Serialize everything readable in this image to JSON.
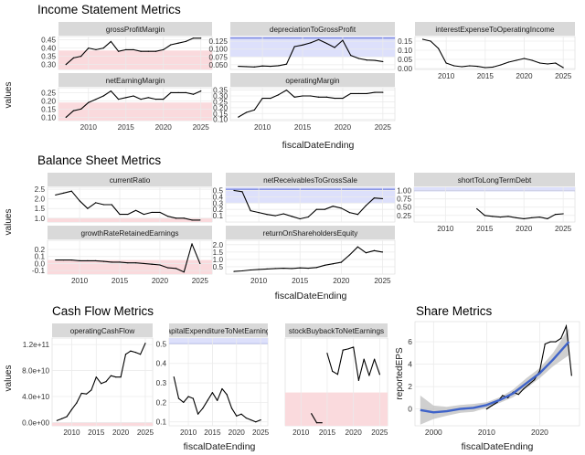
{
  "sections": {
    "income": "Income Statement Metrics",
    "balance": "Balance Sheet Metrics",
    "cashflow": "Cash Flow Metrics",
    "share": "Share Metrics"
  },
  "colors": {
    "panel_bg": "#ffffff",
    "grid": "#ebebeb",
    "strip_bg": "#d9d9d9",
    "line": "#000000",
    "red_band": "#fadadd",
    "blue_band": "#dde0fb",
    "blue_line": "#5b6bd6",
    "red_line": "#e8a0a8",
    "smooth_line": "#3f63c9",
    "smooth_band": "#bfbfbf"
  },
  "chart_data": [
    {
      "id": "income-statement",
      "type": "line",
      "title": "Income Statement Metrics",
      "xlabel": "fiscalDateEnding",
      "ylabel": "values",
      "xticks": [
        2010,
        2015,
        2020,
        2025
      ],
      "panels": [
        {
          "strip": "grossProfitMargin",
          "xlim": [
            2006,
            2026.5
          ],
          "ylim": [
            0.27,
            0.47
          ],
          "yticks": [
            0.3,
            0.35,
            0.4,
            0.45
          ],
          "yticklabels": [
            "0.30",
            "0.35",
            "0.40",
            "0.45"
          ],
          "band": {
            "type": "red",
            "range": [
              0.27,
              0.385
            ]
          },
          "x": [
            2007,
            2008,
            2009,
            2010,
            2011,
            2012,
            2013,
            2014,
            2015,
            2016,
            2017,
            2018,
            2019,
            2020,
            2021,
            2022,
            2023,
            2024,
            2025
          ],
          "y": [
            0.3,
            0.34,
            0.35,
            0.4,
            0.39,
            0.4,
            0.44,
            0.38,
            0.39,
            0.39,
            0.38,
            0.38,
            0.38,
            0.39,
            0.42,
            0.43,
            0.44,
            0.46,
            0.46
          ]
        },
        {
          "strip": "depreciationToGrossProfit",
          "xlim": [
            2006,
            2026.5
          ],
          "ylim": [
            0.035,
            0.14
          ],
          "yticks": [
            0.05,
            0.075,
            0.1,
            0.125
          ],
          "yticklabels": [
            "0.050",
            "0.075",
            "0.100",
            "0.125"
          ],
          "band": {
            "type": "blue",
            "range": [
              0.075,
              0.14
            ],
            "line": 0.135
          },
          "x": [
            2007,
            2008,
            2009,
            2010,
            2011,
            2012,
            2013,
            2014,
            2015,
            2016,
            2017,
            2018,
            2019,
            2020,
            2021,
            2022,
            2023,
            2024,
            2025
          ],
          "y": [
            0.045,
            0.044,
            0.043,
            0.046,
            0.045,
            0.047,
            0.052,
            0.108,
            0.113,
            0.12,
            0.13,
            0.118,
            0.105,
            0.128,
            0.08,
            0.07,
            0.065,
            0.064,
            0.06
          ]
        },
        {
          "strip": "interestExpenseToOperatingIncome",
          "xlim": [
            2006,
            2026.5
          ],
          "ylim": [
            -0.005,
            0.175
          ],
          "yticks": [
            0.0,
            0.05,
            0.1,
            0.15
          ],
          "yticklabels": [
            "0.00",
            "0.05",
            "0.10",
            "0.15"
          ],
          "band": null,
          "x": [
            2007,
            2008,
            2009,
            2010,
            2011,
            2012,
            2013,
            2014,
            2015,
            2016,
            2017,
            2018,
            2019,
            2020,
            2021,
            2022,
            2023,
            2024,
            2025
          ],
          "y": [
            0.16,
            0.15,
            0.11,
            0.03,
            0.015,
            0.01,
            0.015,
            0.012,
            0.005,
            0.008,
            0.02,
            0.035,
            0.045,
            0.055,
            0.045,
            0.03,
            0.025,
            0.03,
            0.005
          ]
        },
        {
          "strip": "netEarningMargin",
          "xlim": [
            2006,
            2026.5
          ],
          "ylim": [
            0.08,
            0.28
          ],
          "yticks": [
            0.1,
            0.15,
            0.2,
            0.25
          ],
          "yticklabels": [
            "0.10",
            "0.15",
            "0.20",
            "0.25"
          ],
          "band": {
            "type": "red",
            "range": [
              0.08,
              0.19
            ]
          },
          "x": [
            2007,
            2008,
            2009,
            2010,
            2011,
            2012,
            2013,
            2014,
            2015,
            2016,
            2017,
            2018,
            2019,
            2020,
            2021,
            2022,
            2023,
            2024,
            2025
          ],
          "y": [
            0.1,
            0.14,
            0.15,
            0.19,
            0.21,
            0.23,
            0.26,
            0.21,
            0.22,
            0.23,
            0.21,
            0.22,
            0.21,
            0.21,
            0.25,
            0.25,
            0.25,
            0.24,
            0.26
          ]
        },
        {
          "strip": "operatingMargin",
          "xlim": [
            2006,
            2026.5
          ],
          "ylim": [
            0.09,
            0.37
          ],
          "yticks": [
            0.1,
            0.15,
            0.2,
            0.25,
            0.3,
            0.35
          ],
          "yticklabels": [
            "0.10",
            "0.15",
            "0.20",
            "0.25",
            "0.30",
            "0.35"
          ],
          "band": null,
          "x": [
            2007,
            2008,
            2009,
            2010,
            2011,
            2012,
            2013,
            2014,
            2015,
            2016,
            2017,
            2018,
            2019,
            2020,
            2021,
            2022,
            2023,
            2024,
            2025
          ],
          "y": [
            0.12,
            0.16,
            0.18,
            0.28,
            0.28,
            0.31,
            0.35,
            0.29,
            0.3,
            0.3,
            0.29,
            0.29,
            0.28,
            0.28,
            0.32,
            0.32,
            0.32,
            0.33,
            0.33
          ]
        }
      ]
    },
    {
      "id": "balance-sheet",
      "type": "line",
      "title": "Balance Sheet Metrics",
      "xlabel": "fiscalDateEnding",
      "ylabel": "values",
      "xticks": [
        2010,
        2015,
        2020,
        2025
      ],
      "panels": [
        {
          "strip": "currentRatio",
          "xlim": [
            2006,
            2026.5
          ],
          "ylim": [
            0.8,
            2.6
          ],
          "yticks": [
            1.0,
            1.5,
            2.0,
            2.5
          ],
          "yticklabels": [
            "1.0",
            "1.5",
            "2.0",
            "2.5"
          ],
          "band": {
            "type": "red",
            "range": [
              0.8,
              1.0
            ]
          },
          "x": [
            2007,
            2008,
            2009,
            2010,
            2011,
            2012,
            2013,
            2014,
            2015,
            2016,
            2017,
            2018,
            2019,
            2020,
            2021,
            2022,
            2023,
            2024,
            2025
          ],
          "y": [
            2.2,
            2.3,
            2.4,
            1.9,
            1.5,
            1.8,
            1.7,
            1.7,
            1.2,
            1.2,
            1.4,
            1.2,
            1.3,
            1.3,
            1.1,
            1.0,
            1.0,
            0.9,
            0.9
          ]
        },
        {
          "strip": "netReceivablesToGrossSale",
          "xlim": [
            2006,
            2026.5
          ],
          "ylim": [
            0.0,
            0.55
          ],
          "yticks": [
            0.1,
            0.2,
            0.3,
            0.4,
            0.5
          ],
          "yticklabels": [
            "0.1",
            "0.2",
            "0.3",
            "0.4",
            "0.5"
          ],
          "band": {
            "type": "blue",
            "range": [
              0.3,
              0.55
            ],
            "line": 0.52
          },
          "x": [
            2007,
            2008,
            2009,
            2010,
            2011,
            2012,
            2013,
            2014,
            2015,
            2016,
            2017,
            2018,
            2019,
            2020,
            2021,
            2022,
            2023,
            2024,
            2025
          ],
          "y": [
            0.5,
            0.48,
            0.18,
            0.15,
            0.12,
            0.1,
            0.13,
            0.09,
            0.05,
            0.08,
            0.2,
            0.2,
            0.25,
            0.22,
            0.15,
            0.12,
            0.26,
            0.38,
            0.37
          ]
        },
        {
          "strip": "shortToLongTermDebt",
          "xlim": [
            2006,
            2026.5
          ],
          "ylim": [
            0.05,
            1.1
          ],
          "yticks": [
            0.25,
            0.5,
            0.75,
            1.0
          ],
          "yticklabels": [
            "0.25",
            "0.50",
            "0.75",
            "1.00"
          ],
          "band": {
            "type": "blue",
            "range": [
              1.0,
              1.1
            ],
            "line": 1.0
          },
          "x": [
            2014,
            2015,
            2016,
            2017,
            2018,
            2019,
            2020,
            2021,
            2022,
            2023,
            2024,
            2025
          ],
          "y": [
            0.45,
            0.25,
            0.22,
            0.2,
            0.22,
            0.18,
            0.15,
            0.18,
            0.2,
            0.15,
            0.28,
            0.3
          ]
        },
        {
          "strip": "growthRateRetainedEarnings",
          "xlim": [
            2006,
            2026.5
          ],
          "ylim": [
            -0.15,
            0.33
          ],
          "yticks": [
            -0.1,
            0.0,
            0.1,
            0.2
          ],
          "yticklabels": [
            "-0.1",
            "0.0",
            "0.1",
            "0.2"
          ],
          "band": {
            "type": "red",
            "range": [
              -0.15,
              0.05
            ]
          },
          "x": [
            2007,
            2008,
            2009,
            2010,
            2011,
            2012,
            2013,
            2014,
            2015,
            2016,
            2017,
            2018,
            2019,
            2020,
            2021,
            2022,
            2023,
            2024,
            2025
          ],
          "y": [
            0.05,
            0.05,
            0.05,
            0.04,
            0.04,
            0.04,
            0.03,
            0.02,
            0.02,
            0.01,
            0.01,
            0.0,
            -0.01,
            -0.02,
            -0.06,
            -0.07,
            -0.12,
            0.28,
            0.0
          ]
        },
        {
          "strip": "returnOnShareholdersEquity",
          "xlim": [
            2006,
            2026.5
          ],
          "ylim": [
            0.0,
            2.3
          ],
          "yticks": [
            0.5,
            1.0,
            1.5,
            2.0
          ],
          "yticklabels": [
            "0.5",
            "1.0",
            "1.5",
            "2.0"
          ],
          "band": null,
          "x": [
            2007,
            2008,
            2009,
            2010,
            2011,
            2012,
            2013,
            2014,
            2015,
            2016,
            2017,
            2018,
            2019,
            2020,
            2021,
            2022,
            2023,
            2024,
            2025
          ],
          "y": [
            0.18,
            0.22,
            0.28,
            0.32,
            0.35,
            0.38,
            0.4,
            0.38,
            0.42,
            0.4,
            0.45,
            0.6,
            0.7,
            0.8,
            1.3,
            1.85,
            1.45,
            1.6,
            1.5
          ]
        }
      ]
    },
    {
      "id": "cash-flow",
      "type": "line",
      "title": "Cash Flow Metrics",
      "xlabel": "fiscalDateEnding",
      "ylabel": "values",
      "panels": [
        {
          "strip": "operatingCashFlow",
          "xlim": [
            2006,
            2026.5
          ],
          "ylim": [
            -5000000000.0,
            130000000000.0
          ],
          "xticks": [
            2010,
            2015,
            2020,
            2025
          ],
          "yticks": [
            0,
            40000000000.0,
            80000000000.0,
            120000000000.0
          ],
          "yticklabels": [
            "0.0e+00",
            "4.0e+10",
            "8.0e+10",
            "1.2e+11"
          ],
          "band": {
            "type": "red",
            "range": [
              -5000000000.0,
              0
            ]
          },
          "x": [
            2007,
            2008,
            2009,
            2010,
            2011,
            2012,
            2013,
            2014,
            2015,
            2016,
            2017,
            2018,
            2019,
            2020,
            2021,
            2022,
            2023,
            2024,
            2025
          ],
          "y": [
            3000000000.0,
            6000000000.0,
            9000000000.0,
            20000000000.0,
            30000000000.0,
            45000000000.0,
            44000000000.0,
            50000000000.0,
            70000000000.0,
            60000000000.0,
            63000000000.0,
            72000000000.0,
            70000000000.0,
            70000000000.0,
            105000000000.0,
            110000000000.0,
            108000000000.0,
            105000000000.0,
            122000000000.0
          ]
        },
        {
          "strip": "capitalExpenditureToNetEarnings",
          "xlim": [
            2006,
            2026.5
          ],
          "ylim": [
            0.08,
            0.53
          ],
          "xticks": [
            2010,
            2015,
            2020,
            2025
          ],
          "yticks": [
            0.1,
            0.2,
            0.3,
            0.4,
            0.5
          ],
          "yticklabels": [
            "0.1",
            "0.2",
            "0.3",
            "0.4",
            "0.5"
          ],
          "band": {
            "type": "blue",
            "range": [
              0.5,
              0.53
            ],
            "line": 0.5
          },
          "x": [
            2007,
            2008,
            2009,
            2010,
            2011,
            2012,
            2013,
            2014,
            2015,
            2016,
            2017,
            2018,
            2019,
            2020,
            2021,
            2022,
            2023,
            2024,
            2025
          ],
          "y": [
            0.33,
            0.22,
            0.2,
            0.23,
            0.22,
            0.14,
            0.17,
            0.21,
            0.25,
            0.21,
            0.27,
            0.24,
            0.17,
            0.13,
            0.14,
            0.12,
            0.11,
            0.1,
            0.11
          ]
        },
        {
          "strip": "stockBuybackToNetEarnings",
          "xlim": [
            2007,
            2026.5
          ],
          "ylim": [
            -0.05,
            1.4
          ],
          "xticks": [
            2010,
            2015,
            2020,
            2025
          ],
          "yticks": [],
          "yticklabels": [],
          "band": {
            "type": "red",
            "range": [
              -0.05,
              0.5
            ]
          },
          "x": [
            2012,
            2013,
            2014,
            2015,
            2016,
            2017,
            2018,
            2019,
            2020,
            2021,
            2022,
            2023,
            2024,
            2025
          ],
          "y": [
            0.15,
            0.0,
            0.0,
            1.15,
            0.85,
            0.8,
            1.2,
            1.22,
            1.25,
            0.7,
            1.05,
            0.78,
            1.05,
            0.8
          ],
          "segments": [
            [
              0,
              2
            ],
            [
              3,
              13
            ]
          ]
        }
      ]
    },
    {
      "id": "share-metrics",
      "type": "scatter",
      "title": "Share Metrics",
      "xlabel": "fiscalDateEnding",
      "ylabel": "reportedEPS",
      "xlim": [
        1996.5,
        2027.5
      ],
      "ylim": [
        -1.5,
        7.8
      ],
      "xticks": [
        2000,
        2010,
        2020
      ],
      "yticks": [
        0,
        2,
        4,
        6
      ],
      "x": [
        2010,
        2011,
        2012,
        2013,
        2014,
        2015,
        2016,
        2017,
        2018,
        2019,
        2020,
        2021,
        2022,
        2023,
        2024,
        2025,
        2026
      ],
      "y": [
        0.0,
        0.3,
        0.6,
        1.2,
        1.0,
        1.5,
        1.3,
        1.8,
        2.2,
        2.6,
        3.4,
        5.8,
        6.0,
        6.0,
        6.3,
        7.4,
        3.0
      ],
      "smooth_x": [
        1997.5,
        2000,
        2002.5,
        2005,
        2007.5,
        2010,
        2012.5,
        2015,
        2017.5,
        2020,
        2022.5,
        2025.5
      ],
      "smooth_y": [
        -0.1,
        -0.3,
        -0.2,
        0.0,
        0.1,
        0.35,
        0.8,
        1.4,
        2.3,
        3.2,
        4.4,
        6.0
      ],
      "smooth_lo": [
        -1.4,
        -0.9,
        -0.6,
        -0.35,
        -0.25,
        0.1,
        0.55,
        1.05,
        1.85,
        2.75,
        3.8,
        4.8
      ],
      "smooth_hi": [
        1.2,
        0.3,
        0.2,
        0.35,
        0.45,
        0.6,
        1.05,
        1.75,
        2.75,
        3.65,
        5.0,
        7.2
      ]
    }
  ]
}
